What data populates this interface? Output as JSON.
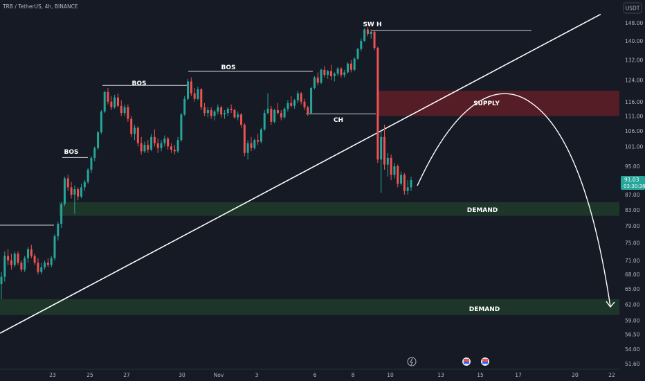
{
  "header": {
    "symbol": "TRB / TetherUS, 4h, BINANCE",
    "currency_button": "USDT"
  },
  "price_badge": {
    "price": "91.03",
    "countdown": "03:30:38",
    "color": "#26a69a"
  },
  "colors": {
    "background": "#161a25",
    "up": "#26a69a",
    "down": "#ef5350",
    "supply_zone": "#5c1f28",
    "demand_zone": "#1e3a2a",
    "text": "#b2b5be"
  },
  "icons": [
    "lightning-icon",
    "flag-icon",
    "flag-icon"
  ],
  "chart_data": {
    "type": "candlestick",
    "y_axis": {
      "ticks": [
        "148.00",
        "140.00",
        "132.00",
        "124.00",
        "116.00",
        "111.00",
        "106.00",
        "101.00",
        "95.00",
        "91.00",
        "87.00",
        "83.00",
        "79.00",
        "75.00",
        "71.00",
        "68.00",
        "65.00",
        "62.00",
        "59.00",
        "56.50",
        "54.00",
        "51.60"
      ],
      "scale": "log",
      "range": [
        51.0,
        152.0
      ]
    },
    "x_axis": {
      "ticks": [
        "23",
        "25",
        "27",
        "30",
        "Nov",
        "3",
        "6",
        "8",
        "10",
        "13",
        "15",
        "17",
        "20",
        "22"
      ]
    },
    "annotations": [
      {
        "text": "BOS"
      },
      {
        "text": "BOS"
      },
      {
        "text": "BOS"
      },
      {
        "text": "SW H"
      },
      {
        "text": "CH"
      },
      {
        "text": "SUPPLY"
      },
      {
        "text": "DEMAND"
      },
      {
        "text": "DEMAND"
      }
    ],
    "zones": [
      {
        "label": "SUPPLY",
        "low": 111.0,
        "high": 120.0
      },
      {
        "label": "DEMAND",
        "low": 81.5,
        "high": 85.0
      },
      {
        "label": "DEMAND",
        "low": 60.0,
        "high": 63.0
      }
    ],
    "levels": [
      {
        "name": "BOS",
        "price": 79.2
      },
      {
        "name": "BOS",
        "price": 97.6
      },
      {
        "name": "BOS",
        "price": 122.0
      },
      {
        "name": "BOS",
        "price": 127.4
      },
      {
        "name": "SW H",
        "price": 144.5
      },
      {
        "name": "CH",
        "price": 111.7
      }
    ],
    "trendline": {
      "from": 56.7,
      "to": 152.0
    },
    "projection": [
      91.0,
      115.5,
      61.5
    ],
    "candles": [
      [
        66.0,
        68.5,
        63.0,
        67.5
      ],
      [
        67.5,
        73.0,
        66.5,
        72.0
      ],
      [
        72.0,
        73.5,
        70.0,
        71.0
      ],
      [
        71.0,
        72.5,
        69.0,
        70.0
      ],
      [
        70.0,
        73.0,
        69.5,
        72.5
      ],
      [
        72.5,
        73.0,
        70.0,
        70.5
      ],
      [
        70.5,
        71.0,
        68.5,
        69.0
      ],
      [
        69.0,
        72.0,
        68.5,
        71.5
      ],
      [
        71.5,
        74.0,
        70.5,
        73.5
      ],
      [
        73.5,
        74.5,
        71.5,
        72.0
      ],
      [
        72.0,
        72.5,
        70.0,
        70.5
      ],
      [
        70.5,
        71.5,
        68.0,
        68.5
      ],
      [
        68.5,
        70.5,
        68.0,
        69.5
      ],
      [
        69.5,
        71.0,
        69.0,
        70.5
      ],
      [
        70.5,
        71.5,
        69.5,
        70.0
      ],
      [
        70.0,
        72.0,
        69.5,
        71.5
      ],
      [
        71.5,
        77.0,
        71.0,
        76.5
      ],
      [
        76.5,
        80.0,
        75.5,
        79.5
      ],
      [
        79.5,
        85.0,
        78.5,
        84.5
      ],
      [
        84.5,
        92.0,
        84.0,
        91.5
      ],
      [
        91.5,
        92.5,
        88.0,
        89.0
      ],
      [
        89.0,
        90.5,
        86.0,
        87.0
      ],
      [
        87.0,
        89.5,
        82.0,
        88.5
      ],
      [
        88.5,
        89.0,
        85.5,
        86.5
      ],
      [
        86.5,
        90.0,
        86.0,
        89.0
      ],
      [
        89.0,
        91.0,
        88.0,
        90.5
      ],
      [
        90.5,
        94.5,
        90.0,
        94.0
      ],
      [
        94.0,
        98.0,
        93.0,
        97.5
      ],
      [
        97.5,
        101.0,
        96.5,
        100.5
      ],
      [
        100.5,
        106.0,
        100.0,
        105.5
      ],
      [
        105.5,
        113.0,
        105.0,
        112.5
      ],
      [
        112.5,
        120.0,
        112.0,
        119.5
      ],
      [
        119.5,
        121.0,
        115.0,
        116.0
      ],
      [
        116.0,
        118.0,
        113.0,
        114.0
      ],
      [
        114.0,
        118.5,
        113.5,
        117.5
      ],
      [
        117.5,
        119.0,
        114.0,
        114.5
      ],
      [
        114.5,
        116.5,
        111.0,
        112.0
      ],
      [
        112.0,
        115.0,
        111.0,
        114.0
      ],
      [
        114.0,
        115.0,
        109.0,
        110.0
      ],
      [
        110.0,
        111.0,
        104.0,
        105.0
      ],
      [
        105.0,
        108.0,
        103.0,
        107.0
      ],
      [
        107.0,
        107.5,
        101.0,
        102.0
      ],
      [
        102.0,
        104.0,
        98.5,
        99.5
      ],
      [
        99.5,
        102.5,
        99.0,
        101.5
      ],
      [
        101.5,
        103.0,
        99.0,
        100.0
      ],
      [
        100.0,
        105.0,
        99.5,
        104.0
      ],
      [
        104.0,
        106.5,
        101.0,
        102.0
      ],
      [
        102.0,
        103.5,
        99.0,
        100.5
      ],
      [
        100.5,
        103.0,
        99.5,
        102.0
      ],
      [
        102.0,
        104.5,
        101.0,
        103.5
      ],
      [
        103.5,
        104.0,
        100.0,
        101.0
      ],
      [
        101.0,
        102.0,
        99.0,
        100.0
      ],
      [
        100.0,
        101.5,
        98.5,
        99.5
      ],
      [
        99.5,
        104.0,
        99.0,
        103.0
      ],
      [
        103.0,
        112.0,
        102.5,
        111.5
      ],
      [
        111.5,
        118.0,
        111.0,
        117.0
      ],
      [
        117.0,
        124.5,
        116.5,
        123.5
      ],
      [
        123.5,
        125.0,
        118.0,
        119.0
      ],
      [
        119.0,
        121.0,
        116.0,
        117.0
      ],
      [
        117.0,
        121.5,
        116.5,
        120.5
      ],
      [
        120.5,
        121.0,
        113.0,
        114.0
      ],
      [
        114.0,
        115.5,
        111.0,
        112.0
      ],
      [
        112.0,
        114.0,
        110.5,
        113.0
      ],
      [
        113.0,
        114.0,
        110.0,
        111.0
      ],
      [
        111.0,
        113.0,
        109.5,
        112.5
      ],
      [
        112.5,
        115.0,
        111.5,
        114.0
      ],
      [
        114.0,
        114.5,
        110.5,
        111.5
      ],
      [
        111.5,
        113.0,
        110.0,
        112.0
      ],
      [
        112.0,
        114.0,
        111.0,
        113.5
      ],
      [
        113.5,
        115.0,
        112.0,
        113.0
      ],
      [
        113.0,
        113.5,
        110.0,
        110.5
      ],
      [
        110.5,
        112.5,
        109.5,
        111.5
      ],
      [
        111.5,
        112.0,
        107.0,
        108.0
      ],
      [
        108.0,
        108.5,
        98.0,
        99.0
      ],
      [
        99.0,
        103.0,
        97.0,
        102.0
      ],
      [
        102.0,
        104.0,
        99.5,
        100.5
      ],
      [
        100.5,
        103.5,
        100.0,
        103.0
      ],
      [
        103.0,
        105.0,
        101.5,
        102.5
      ],
      [
        102.5,
        107.0,
        102.0,
        106.5
      ],
      [
        106.5,
        113.0,
        106.0,
        112.0
      ],
      [
        112.0,
        119.0,
        111.5,
        113.5
      ],
      [
        113.5,
        114.5,
        108.0,
        109.0
      ],
      [
        109.0,
        113.5,
        108.5,
        113.0
      ],
      [
        113.0,
        115.5,
        111.5,
        112.0
      ],
      [
        112.0,
        113.0,
        109.5,
        110.5
      ],
      [
        110.5,
        114.0,
        110.0,
        113.5
      ],
      [
        113.5,
        116.5,
        112.5,
        115.5
      ],
      [
        115.5,
        118.0,
        114.0,
        114.5
      ],
      [
        114.5,
        117.0,
        113.5,
        116.5
      ],
      [
        116.5,
        120.0,
        115.5,
        119.0
      ],
      [
        119.0,
        119.5,
        115.0,
        116.0
      ],
      [
        116.0,
        117.0,
        113.0,
        114.0
      ],
      [
        114.0,
        114.5,
        111.0,
        112.0
      ],
      [
        112.0,
        121.5,
        111.5,
        121.0
      ],
      [
        121.0,
        125.5,
        120.5,
        125.0
      ],
      [
        125.0,
        127.0,
        122.0,
        123.0
      ],
      [
        123.0,
        128.5,
        122.5,
        128.0
      ],
      [
        128.0,
        129.5,
        125.0,
        126.0
      ],
      [
        126.0,
        128.0,
        124.5,
        127.5
      ],
      [
        127.5,
        130.0,
        124.0,
        125.5
      ],
      [
        125.5,
        127.0,
        123.5,
        126.5
      ],
      [
        126.5,
        129.0,
        125.5,
        128.5
      ],
      [
        128.5,
        129.0,
        125.0,
        126.0
      ],
      [
        126.0,
        128.0,
        125.0,
        127.0
      ],
      [
        127.0,
        131.0,
        126.5,
        130.5
      ],
      [
        130.5,
        132.0,
        127.0,
        128.0
      ],
      [
        128.0,
        133.0,
        127.5,
        132.5
      ],
      [
        132.5,
        137.0,
        132.0,
        136.5
      ],
      [
        136.5,
        141.0,
        135.5,
        140.0
      ],
      [
        140.0,
        145.5,
        139.5,
        145.0
      ],
      [
        145.0,
        146.0,
        142.0,
        143.0
      ],
      [
        143.0,
        145.0,
        141.0,
        144.0
      ],
      [
        144.0,
        144.5,
        136.0,
        137.0
      ],
      [
        137.0,
        137.5,
        96.0,
        97.0
      ],
      [
        97.0,
        106.0,
        87.5,
        104.0
      ],
      [
        104.0,
        108.0,
        94.0,
        95.5
      ],
      [
        95.5,
        99.0,
        92.0,
        97.5
      ],
      [
        97.5,
        98.5,
        91.0,
        92.5
      ],
      [
        92.5,
        96.0,
        91.5,
        95.0
      ],
      [
        95.0,
        95.5,
        89.0,
        90.0
      ],
      [
        90.0,
        93.5,
        89.5,
        92.5
      ],
      [
        92.5,
        93.0,
        87.0,
        88.0
      ],
      [
        88.0,
        91.0,
        87.0,
        89.0
      ],
      [
        89.0,
        92.0,
        88.0,
        91.0
      ]
    ]
  }
}
